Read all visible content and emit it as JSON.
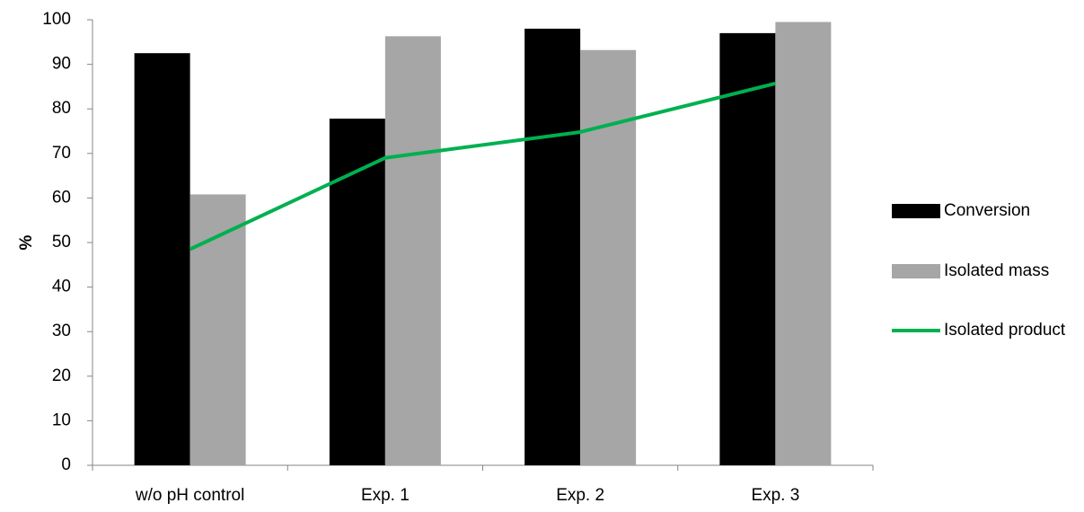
{
  "chart_data": {
    "type": "bar",
    "y_label": "%",
    "categories": [
      "w/o pH control",
      "Exp. 1",
      "Exp. 2",
      "Exp. 3"
    ],
    "series": [
      {
        "name": "Conversion",
        "color": "#000000",
        "values": [
          92.5,
          77.8,
          98,
          97
        ]
      },
      {
        "name": "Isolated mass",
        "color": "#a6a6a6",
        "values": [
          60.8,
          96.3,
          93.2,
          99.5
        ]
      },
      {
        "name": "Isolated product",
        "color": "#00b050",
        "type": "line",
        "values": [
          48.5,
          69,
          74.8,
          85.7
        ]
      }
    ],
    "ylim": [
      0,
      100
    ],
    "yticks": [
      0,
      10,
      20,
      30,
      40,
      50,
      60,
      70,
      80,
      90,
      100
    ],
    "grid": false,
    "legend": "right"
  }
}
